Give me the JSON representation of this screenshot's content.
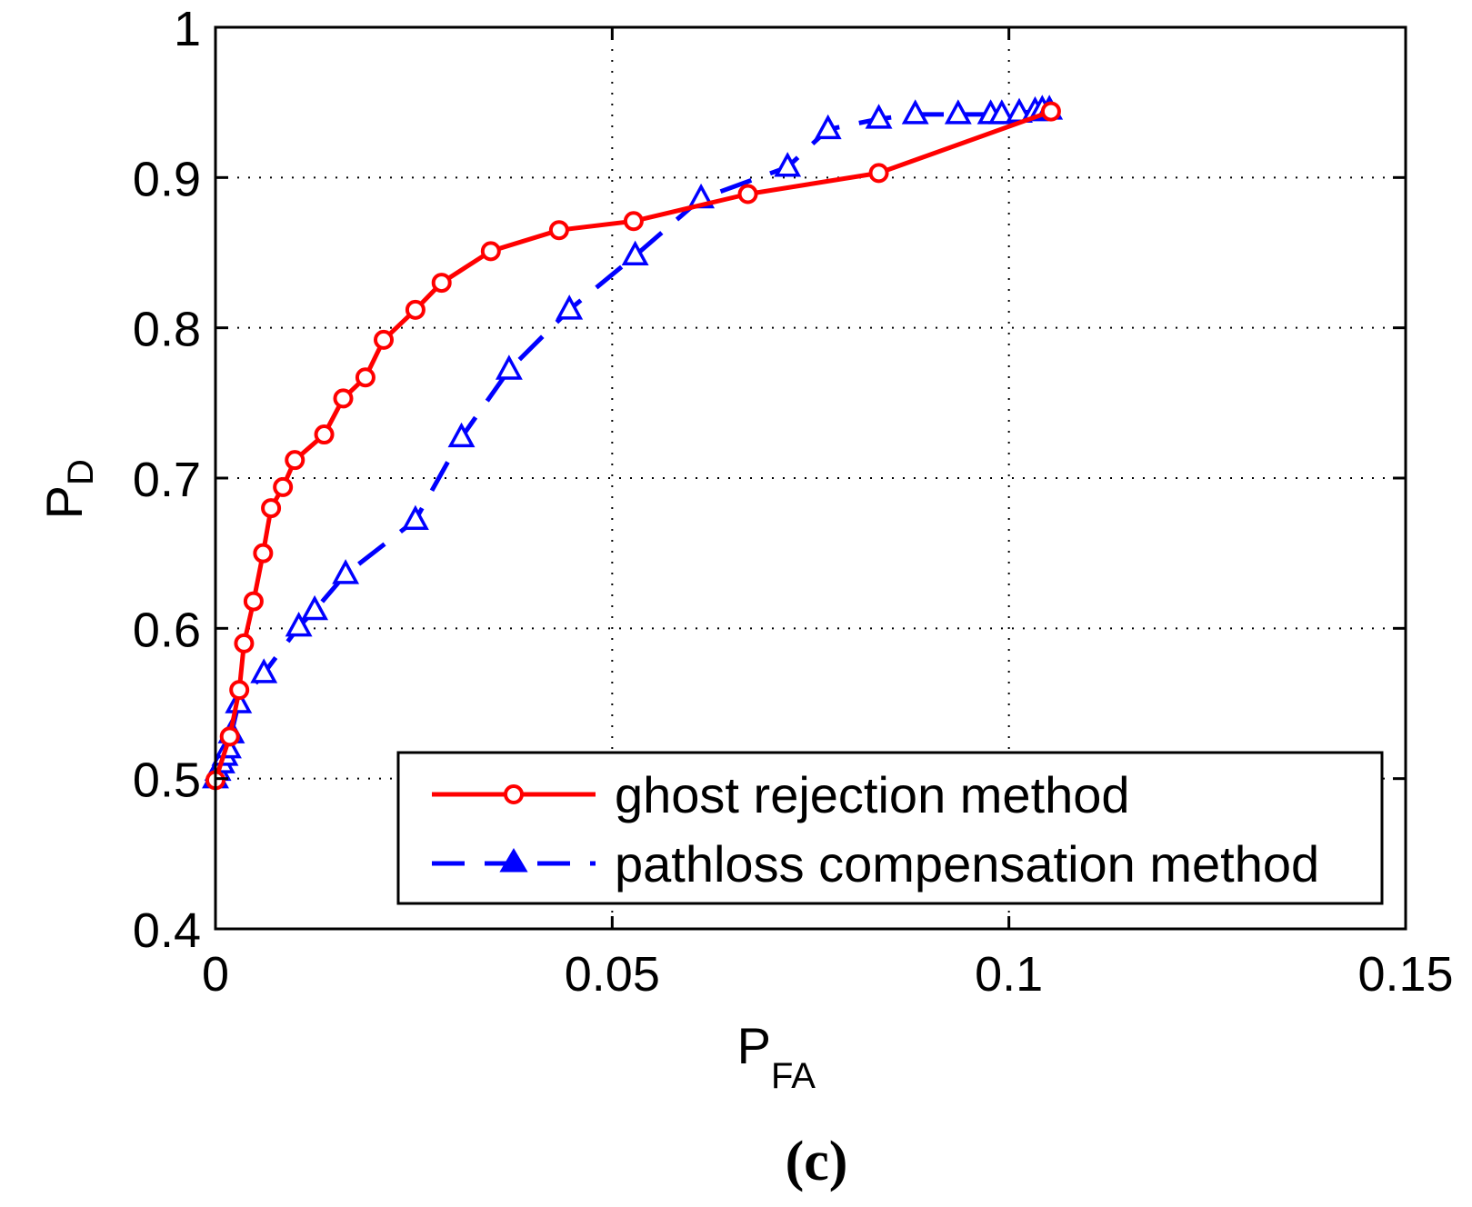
{
  "chart_data": {
    "type": "line",
    "xlabel": "P",
    "xlabel_sub": "FA",
    "ylabel": "P",
    "ylabel_sub": "D",
    "xlim": [
      0,
      0.15
    ],
    "ylim": [
      0.4,
      1.0
    ],
    "xticks": [
      0,
      0.05,
      0.1,
      0.15
    ],
    "xtick_labels": [
      "0",
      "0.05",
      "0.1",
      "0.15"
    ],
    "yticks": [
      0.4,
      0.5,
      0.6,
      0.7,
      0.8,
      0.9,
      1.0
    ],
    "ytick_labels": [
      "0.4",
      "0.5",
      "0.6",
      "0.7",
      "0.8",
      "0.9",
      "1"
    ],
    "grid": true,
    "legend_position": "lower-right",
    "caption": "(c)",
    "series": [
      {
        "name": "ghost rejection method",
        "color": "#ff0000",
        "line_style": "solid",
        "marker": "circle",
        "x": [
          0.0,
          0.0018,
          0.003,
          0.0036,
          0.0048,
          0.006,
          0.007,
          0.0085,
          0.01,
          0.0137,
          0.0161,
          0.0189,
          0.0212,
          0.0252,
          0.0285,
          0.0347,
          0.0433,
          0.0527,
          0.0671,
          0.0836,
          0.1053
        ],
        "y": [
          0.499,
          0.528,
          0.559,
          0.59,
          0.618,
          0.65,
          0.68,
          0.694,
          0.712,
          0.729,
          0.753,
          0.767,
          0.792,
          0.812,
          0.83,
          0.851,
          0.865,
          0.871,
          0.889,
          0.903,
          0.944
        ]
      },
      {
        "name": "pathloss compensation method",
        "color": "#0000ff",
        "line_style": "dashed",
        "marker": "triangle",
        "x": [
          0.0,
          0.0003,
          0.0008,
          0.0012,
          0.0016,
          0.002,
          0.0029,
          0.0061,
          0.0105,
          0.0125,
          0.0164,
          0.0252,
          0.031,
          0.037,
          0.0446,
          0.0529,
          0.0612,
          0.0721,
          0.0772,
          0.0836,
          0.0882,
          0.0936,
          0.0977,
          0.0991,
          0.1013,
          0.1033,
          0.1042,
          0.1051
        ],
        "y": [
          0.5,
          0.505,
          0.51,
          0.515,
          0.52,
          0.53,
          0.55,
          0.57,
          0.601,
          0.612,
          0.636,
          0.672,
          0.727,
          0.772,
          0.812,
          0.848,
          0.886,
          0.907,
          0.932,
          0.939,
          0.942,
          0.942,
          0.942,
          0.942,
          0.943,
          0.944,
          0.945,
          0.945
        ]
      }
    ]
  }
}
